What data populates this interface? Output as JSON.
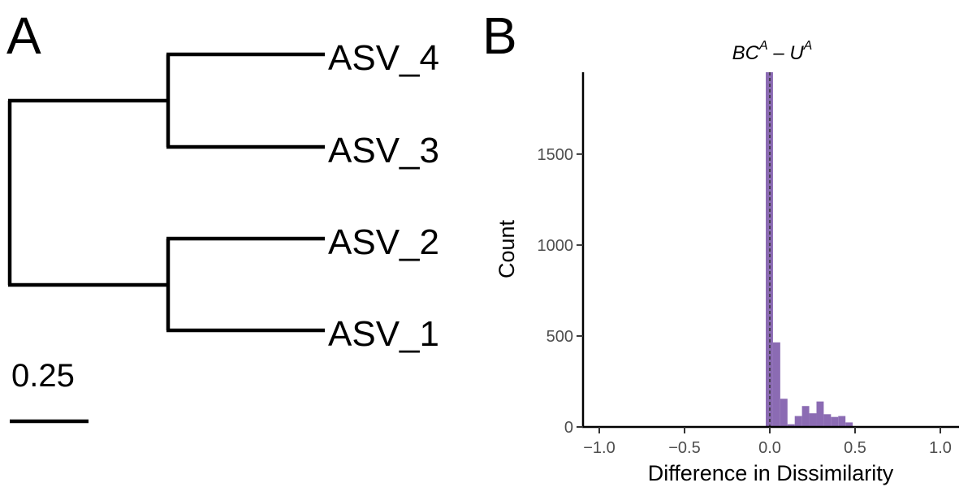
{
  "panel_a": {
    "letter": "A",
    "tips": [
      "ASV_4",
      "ASV_3",
      "ASV_2",
      "ASV_1"
    ],
    "scale_bar_label": "0.25"
  },
  "panel_b": {
    "letter": "B",
    "title_parts": [
      "BC",
      "A",
      " – U",
      "A"
    ]
  },
  "chart_data": {
    "type": "bar",
    "xlabel": "Difference in Dissimilarity",
    "ylabel": "Count",
    "xlim": [
      -1.1,
      1.1
    ],
    "ylim": [
      0,
      1950
    ],
    "x_ticks": [
      -1.0,
      -0.5,
      0.0,
      0.5,
      1.0
    ],
    "x_tick_labels": [
      "−1.0",
      "−0.5",
      "0.0",
      "0.5",
      "1.0"
    ],
    "y_ticks": [
      0,
      500,
      1000,
      1500
    ],
    "y_tick_labels": [
      "0",
      "500",
      "1000",
      "1500"
    ],
    "bin_width": 0.0425,
    "bins": [
      {
        "x": -0.0025,
        "count": 1950
      },
      {
        "x": 0.04,
        "count": 465
      },
      {
        "x": 0.0825,
        "count": 155
      },
      {
        "x": 0.125,
        "count": 15
      },
      {
        "x": 0.1675,
        "count": 60
      },
      {
        "x": 0.21,
        "count": 115
      },
      {
        "x": 0.2525,
        "count": 75
      },
      {
        "x": 0.295,
        "count": 140
      },
      {
        "x": 0.3375,
        "count": 70
      },
      {
        "x": 0.38,
        "count": 55
      },
      {
        "x": 0.4225,
        "count": 60
      },
      {
        "x": 0.465,
        "count": 25
      }
    ],
    "bar_color": "#8b6bb3",
    "reference_line_x": 0.0,
    "grid": false
  }
}
